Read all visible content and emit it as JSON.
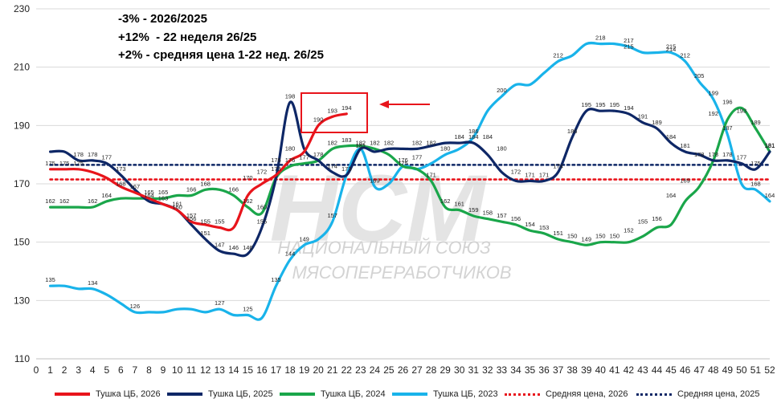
{
  "chart_data": {
    "type": "line",
    "title": "",
    "xlabel": "",
    "ylabel": "",
    "xlim": [
      0,
      52
    ],
    "ylim": [
      110,
      230
    ],
    "y_ticks": [
      110,
      130,
      150,
      170,
      190,
      210,
      230
    ],
    "x_ticks": [
      0,
      1,
      2,
      3,
      4,
      5,
      6,
      7,
      8,
      9,
      10,
      11,
      12,
      13,
      14,
      15,
      16,
      17,
      18,
      19,
      20,
      21,
      22,
      23,
      24,
      25,
      26,
      27,
      28,
      29,
      30,
      31,
      32,
      33,
      34,
      35,
      36,
      37,
      38,
      39,
      40,
      41,
      42,
      43,
      44,
      45,
      46,
      47,
      48,
      49,
      50,
      51,
      52
    ],
    "grid": "horizontal",
    "legend_position": "bottom",
    "annotations": [
      "-3% - 2026/2025",
      "+12%  - 22 неделя 26/25",
      "+2% - средняя цена 1-22 нед. 26/25"
    ],
    "highlight_box_label": "",
    "series": [
      {
        "name": "Тушка ЦБ, 2026",
        "color": "#e8141b",
        "style": "solid",
        "x": [
          1,
          2,
          3,
          4,
          5,
          6,
          7,
          8,
          9,
          10,
          11,
          12,
          13,
          14,
          15,
          16,
          17,
          18,
          19,
          20,
          21,
          22
        ],
        "values": [
          175,
          175,
          175,
          174,
          172,
          169,
          167,
          165,
          163,
          161,
          157,
          156,
          155,
          155,
          166,
          170,
          173,
          178,
          181,
          190,
          193,
          194
        ]
      },
      {
        "name": "Тушка ЦБ, 2025",
        "color": "#0e2766",
        "style": "solid",
        "x": [
          1,
          2,
          3,
          4,
          5,
          6,
          7,
          8,
          9,
          10,
          11,
          12,
          13,
          14,
          15,
          16,
          17,
          18,
          19,
          20,
          21,
          22,
          23,
          24,
          25,
          26,
          27,
          28,
          29,
          30,
          31,
          32,
          33,
          34,
          35,
          36,
          37,
          38,
          39,
          40,
          41,
          42,
          43,
          44,
          45,
          46,
          47,
          48,
          49,
          50,
          51,
          52
        ],
        "values": [
          181,
          181,
          178,
          178,
          177,
          173,
          168,
          164,
          163,
          161,
          156,
          151,
          147,
          146,
          146,
          155,
          172,
          198,
          182,
          178,
          174,
          173,
          182,
          181,
          182,
          182,
          182,
          183,
          184,
          184,
          184,
          180,
          174,
          171,
          171,
          171,
          174,
          186,
          195,
          195,
          195,
          194,
          191,
          189,
          184,
          181,
          180,
          178,
          178,
          177,
          175,
          181
        ]
      },
      {
        "name": "Тушка ЦБ, 2024",
        "color": "#1aa64a",
        "style": "solid",
        "x": [
          1,
          2,
          3,
          4,
          5,
          6,
          7,
          8,
          9,
          10,
          11,
          12,
          13,
          14,
          15,
          16,
          17,
          18,
          19,
          20,
          21,
          22,
          23,
          24,
          25,
          26,
          27,
          28,
          29,
          30,
          31,
          32,
          33,
          34,
          35,
          36,
          37,
          38,
          39,
          40,
          41,
          42,
          43,
          44,
          45,
          46,
          47,
          48,
          49,
          50,
          51,
          52
        ],
        "values": [
          162,
          162,
          162,
          162,
          164,
          165,
          165,
          165,
          165,
          166,
          166,
          168,
          168,
          166,
          162,
          160,
          172,
          176,
          177,
          178,
          182,
          183,
          183,
          182,
          180,
          176,
          175,
          171,
          162,
          161,
          159,
          158,
          157,
          156,
          154,
          153,
          151,
          150,
          149,
          150,
          150,
          150,
          152,
          155,
          156,
          164,
          169,
          178,
          192,
          196,
          189,
          181
        ]
      },
      {
        "name": "Тушка ЦБ, 2023",
        "color": "#19b3ea",
        "style": "solid",
        "x": [
          1,
          2,
          3,
          4,
          5,
          6,
          7,
          8,
          9,
          10,
          11,
          12,
          13,
          14,
          15,
          16,
          17,
          18,
          19,
          20,
          21,
          22,
          23,
          24,
          25,
          26,
          27,
          28,
          29,
          30,
          31,
          32,
          33,
          34,
          35,
          36,
          37,
          38,
          39,
          40,
          41,
          42,
          43,
          44,
          45,
          46,
          47,
          48,
          49,
          50,
          51,
          52
        ],
        "values": [
          135,
          135,
          134,
          134,
          132,
          129,
          126,
          126,
          126,
          127,
          127,
          126,
          127,
          125,
          125,
          124,
          135,
          144,
          149,
          151,
          157,
          173,
          182,
          169,
          170,
          176,
          175,
          177,
          180,
          182,
          186,
          195,
          200,
          204,
          204,
          208,
          212,
          214,
          218,
          218,
          218,
          217,
          215,
          215,
          215,
          212,
          205,
          199,
          187,
          170,
          168,
          164
        ]
      },
      {
        "name": "Средняя цена, 2026",
        "color": "#e8141b",
        "style": "dotted",
        "x": [
          1,
          52
        ],
        "values": [
          171.5,
          171.5
        ]
      },
      {
        "name": "Средняя цена, 2025",
        "color": "#0e2766",
        "style": "dotted",
        "x": [
          1,
          52
        ],
        "values": [
          176.5,
          176.5
        ]
      }
    ],
    "data_labels": [
      {
        "x": 1,
        "y": 175,
        "text": "175"
      },
      {
        "x": 2,
        "y": 175,
        "text": "175"
      },
      {
        "x": 1,
        "y": 162,
        "text": "162"
      },
      {
        "x": 2,
        "y": 162,
        "text": "162"
      },
      {
        "x": 3,
        "y": 175,
        "text": "175"
      },
      {
        "x": 3,
        "y": 178,
        "text": "178"
      },
      {
        "x": 4,
        "y": 178,
        "text": "178"
      },
      {
        "x": 4,
        "y": 162,
        "text": "162"
      },
      {
        "x": 5,
        "y": 177,
        "text": "177"
      },
      {
        "x": 5,
        "y": 164,
        "text": "164"
      },
      {
        "x": 6,
        "y": 173,
        "text": "173"
      },
      {
        "x": 6,
        "y": 168,
        "text": "168"
      },
      {
        "x": 7,
        "y": 167,
        "text": "167"
      },
      {
        "x": 8,
        "y": 165,
        "text": "165"
      },
      {
        "x": 8,
        "y": 164,
        "text": "164"
      },
      {
        "x": 9,
        "y": 165,
        "text": "165"
      },
      {
        "x": 9,
        "y": 163,
        "text": "163"
      },
      {
        "x": 10,
        "y": 160,
        "text": "160"
      },
      {
        "x": 10,
        "y": 161,
        "text": "161"
      },
      {
        "x": 11,
        "y": 166,
        "text": "166"
      },
      {
        "x": 11,
        "y": 156,
        "text": "156"
      },
      {
        "x": 11,
        "y": 157,
        "text": "157"
      },
      {
        "x": 12,
        "y": 168,
        "text": "168"
      },
      {
        "x": 12,
        "y": 155,
        "text": "155"
      },
      {
        "x": 12,
        "y": 151,
        "text": "151"
      },
      {
        "x": 13,
        "y": 155,
        "text": "155"
      },
      {
        "x": 13,
        "y": 147,
        "text": "147"
      },
      {
        "x": 14,
        "y": 166,
        "text": "166"
      },
      {
        "x": 14,
        "y": 146,
        "text": "146"
      },
      {
        "x": 15,
        "y": 146,
        "text": "146"
      },
      {
        "x": 15,
        "y": 162,
        "text": "162"
      },
      {
        "x": 15,
        "y": 170,
        "text": "170"
      },
      {
        "x": 16,
        "y": 160,
        "text": "160"
      },
      {
        "x": 16,
        "y": 155,
        "text": "155"
      },
      {
        "x": 16,
        "y": 172,
        "text": "172"
      },
      {
        "x": 17,
        "y": 176,
        "text": "176"
      },
      {
        "x": 17,
        "y": 173,
        "text": "173"
      },
      {
        "x": 17,
        "y": 135,
        "text": "135"
      },
      {
        "x": 18,
        "y": 198,
        "text": "198"
      },
      {
        "x": 18,
        "y": 180,
        "text": "180"
      },
      {
        "x": 18,
        "y": 176,
        "text": "176"
      },
      {
        "x": 18,
        "y": 144,
        "text": "144"
      },
      {
        "x": 19,
        "y": 177,
        "text": "177"
      },
      {
        "x": 19,
        "y": 149,
        "text": "149"
      },
      {
        "x": 20,
        "y": 178,
        "text": "178"
      },
      {
        "x": 20,
        "y": 190,
        "text": "190"
      },
      {
        "x": 21,
        "y": 193,
        "text": "193"
      },
      {
        "x": 21,
        "y": 182,
        "text": "182"
      },
      {
        "x": 21,
        "y": 174,
        "text": "174"
      },
      {
        "x": 21,
        "y": 157,
        "text": "157"
      },
      {
        "x": 22,
        "y": 194,
        "text": "194"
      },
      {
        "x": 22,
        "y": 183,
        "text": "183"
      },
      {
        "x": 22,
        "y": 173,
        "text": "173"
      },
      {
        "x": 23,
        "y": 182,
        "text": "182"
      },
      {
        "x": 23,
        "y": 181,
        "text": "181"
      },
      {
        "x": 24,
        "y": 182,
        "text": "182"
      },
      {
        "x": 24,
        "y": 169,
        "text": "169"
      },
      {
        "x": 25,
        "y": 182,
        "text": "182"
      },
      {
        "x": 26,
        "y": 176,
        "text": "176"
      },
      {
        "x": 26,
        "y": 175,
        "text": "175"
      },
      {
        "x": 27,
        "y": 182,
        "text": "182"
      },
      {
        "x": 27,
        "y": 177,
        "text": "177"
      },
      {
        "x": 28,
        "y": 182,
        "text": "182"
      },
      {
        "x": 28,
        "y": 171,
        "text": "171"
      },
      {
        "x": 29,
        "y": 180,
        "text": "180"
      },
      {
        "x": 29,
        "y": 162,
        "text": "162"
      },
      {
        "x": 30,
        "y": 184,
        "text": "184"
      },
      {
        "x": 30,
        "y": 161,
        "text": "161"
      },
      {
        "x": 31,
        "y": 184,
        "text": "184"
      },
      {
        "x": 31,
        "y": 186,
        "text": "186"
      },
      {
        "x": 31,
        "y": 159,
        "text": "159"
      },
      {
        "x": 32,
        "y": 184,
        "text": "184"
      },
      {
        "x": 32,
        "y": 158,
        "text": "158"
      },
      {
        "x": 33,
        "y": 180,
        "text": "180"
      },
      {
        "x": 33,
        "y": 200,
        "text": "200"
      },
      {
        "x": 33,
        "y": 157,
        "text": "157"
      },
      {
        "x": 34,
        "y": 172,
        "text": "172"
      },
      {
        "x": 34,
        "y": 156,
        "text": "156"
      },
      {
        "x": 35,
        "y": 171,
        "text": "171"
      },
      {
        "x": 35,
        "y": 154,
        "text": "154"
      },
      {
        "x": 36,
        "y": 171,
        "text": "171"
      },
      {
        "x": 36,
        "y": 153,
        "text": "153"
      },
      {
        "x": 37,
        "y": 174,
        "text": "174"
      },
      {
        "x": 37,
        "y": 212,
        "text": "212"
      },
      {
        "x": 37,
        "y": 151,
        "text": "151"
      },
      {
        "x": 38,
        "y": 186,
        "text": "186"
      },
      {
        "x": 38,
        "y": 150,
        "text": "150"
      },
      {
        "x": 39,
        "y": 195,
        "text": "195"
      },
      {
        "x": 39,
        "y": 149,
        "text": "149"
      },
      {
        "x": 40,
        "y": 195,
        "text": "195"
      },
      {
        "x": 40,
        "y": 218,
        "text": "218"
      },
      {
        "x": 40,
        "y": 150,
        "text": "150"
      },
      {
        "x": 41,
        "y": 195,
        "text": "195"
      },
      {
        "x": 41,
        "y": 150,
        "text": "150"
      },
      {
        "x": 42,
        "y": 194,
        "text": "194"
      },
      {
        "x": 42,
        "y": 217,
        "text": "217"
      },
      {
        "x": 42,
        "y": 215,
        "text": "215"
      },
      {
        "x": 42,
        "y": 152,
        "text": "152"
      },
      {
        "x": 43,
        "y": 191,
        "text": "191"
      },
      {
        "x": 43,
        "y": 155,
        "text": "155"
      },
      {
        "x": 44,
        "y": 189,
        "text": "189"
      },
      {
        "x": 44,
        "y": 156,
        "text": "156"
      },
      {
        "x": 45,
        "y": 184,
        "text": "184"
      },
      {
        "x": 45,
        "y": 214,
        "text": "214"
      },
      {
        "x": 45,
        "y": 215,
        "text": "215"
      },
      {
        "x": 45,
        "y": 164,
        "text": "164"
      },
      {
        "x": 46,
        "y": 181,
        "text": "181"
      },
      {
        "x": 46,
        "y": 212,
        "text": "212"
      },
      {
        "x": 46,
        "y": 169,
        "text": "169"
      },
      {
        "x": 47,
        "y": 205,
        "text": "205"
      },
      {
        "x": 47,
        "y": 178,
        "text": "178"
      },
      {
        "x": 48,
        "y": 199,
        "text": "199"
      },
      {
        "x": 48,
        "y": 192,
        "text": "192"
      },
      {
        "x": 48,
        "y": 178,
        "text": "178"
      },
      {
        "x": 49,
        "y": 196,
        "text": "196"
      },
      {
        "x": 49,
        "y": 187,
        "text": "187"
      },
      {
        "x": 49,
        "y": 178,
        "text": "178"
      },
      {
        "x": 50,
        "y": 193,
        "text": "193"
      },
      {
        "x": 50,
        "y": 177,
        "text": "177"
      },
      {
        "x": 51,
        "y": 189,
        "text": "189"
      },
      {
        "x": 51,
        "y": 168,
        "text": "168"
      },
      {
        "x": 51,
        "y": 175,
        "text": "175"
      },
      {
        "x": 52,
        "y": 181,
        "text": "181"
      },
      {
        "x": 52,
        "y": 181.2,
        "text": "181"
      },
      {
        "x": 52,
        "y": 164,
        "text": "164"
      },
      {
        "x": 4,
        "y": 134,
        "text": "134"
      },
      {
        "x": 1,
        "y": 135,
        "text": "135"
      },
      {
        "x": 7,
        "y": 126,
        "text": "126"
      },
      {
        "x": 13,
        "y": 127,
        "text": "127"
      },
      {
        "x": 15,
        "y": 125,
        "text": "125"
      }
    ]
  },
  "watermark": {
    "brand": "НСМ",
    "line1": "НАЦИОНАЛЬНЫЙ СОЮЗ",
    "line2": "МЯСОПЕРЕРАБОТЧИКОВ"
  },
  "colors": {
    "red": "#e8141b",
    "navy": "#0e2766",
    "green": "#1aa64a",
    "cyan": "#19b3ea",
    "grid": "#d9d9d9"
  }
}
